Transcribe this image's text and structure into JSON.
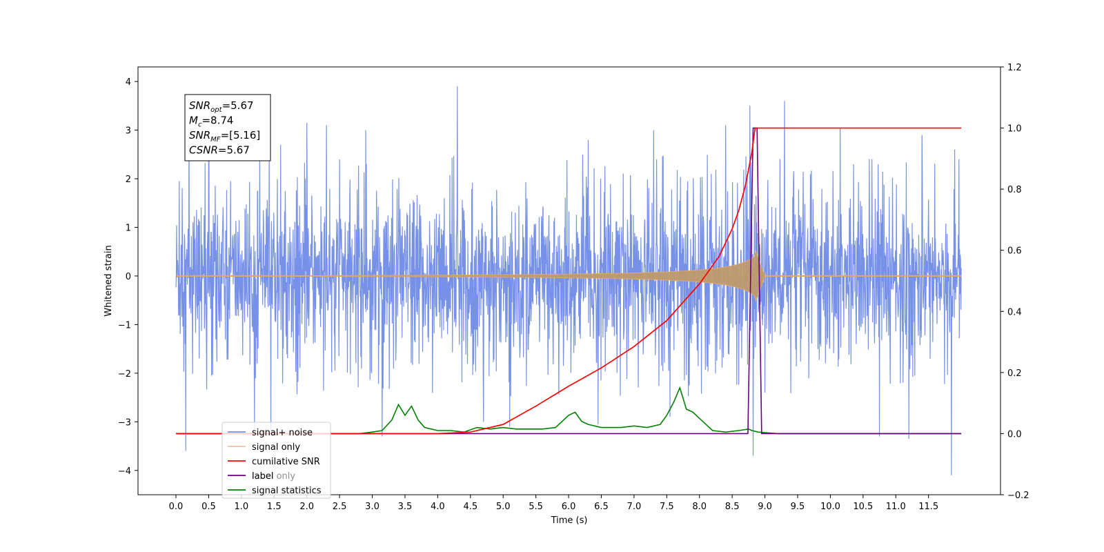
{
  "chart_data": {
    "type": "line",
    "xlabel": "Time (s)",
    "ylabel": "Whitened strain",
    "xlim": [
      -0.58,
      12.6
    ],
    "ylim": [
      -4.5,
      4.3
    ],
    "y2lim": [
      -0.2,
      1.2
    ],
    "x_ticks": [
      0.0,
      0.5,
      1.0,
      1.5,
      2.0,
      2.5,
      3.0,
      3.5,
      4.0,
      4.5,
      5.0,
      5.5,
      6.0,
      6.5,
      7.0,
      7.5,
      8.0,
      8.5,
      9.0,
      9.5,
      10.0,
      10.5,
      11.0,
      11.5
    ],
    "x_tick_labels": [
      "0.0",
      "0.5",
      "1.0",
      "1.5",
      "2.0",
      "2.5",
      "3.0",
      "3.5",
      "4.0",
      "4.5",
      "5.0",
      "5.5",
      "6.0",
      "6.5",
      "7.0",
      "7.5",
      "8.0",
      "8.5",
      "9.0",
      "9.5",
      "10.0",
      "10.5",
      "11.0",
      "11.5"
    ],
    "y_ticks": [
      -4,
      -3,
      -2,
      -1,
      0,
      1,
      2,
      3,
      4
    ],
    "y_tick_labels": [
      "−4",
      "−3",
      "−2",
      "−1",
      "0",
      "1",
      "2",
      "3",
      "4"
    ],
    "y2_ticks": [
      -0.2,
      0.0,
      0.2,
      0.4,
      0.6,
      0.8,
      1.0,
      1.2
    ],
    "y2_tick_labels": [
      "−0.2",
      "0.0",
      "0.2",
      "0.4",
      "0.6",
      "0.8",
      "1.0",
      "1.2"
    ],
    "grid": false,
    "legend_position": "lower-left",
    "annotation": {
      "lines": [
        {
          "main": "SNR",
          "sub": "opt",
          "rest": "=5.67"
        },
        {
          "main": "M",
          "sub": "c",
          "rest": "=8.74"
        },
        {
          "main": "SNR",
          "sub": "MF",
          "rest": "=[5.16]"
        },
        {
          "main": "CSNR",
          "sub": "",
          "rest": "=5.67"
        }
      ]
    },
    "series": [
      {
        "name": "signal+ noise",
        "axis": "left",
        "color": "#6f8be6",
        "duration": 12.0,
        "envelope": 1.7,
        "spikes": [
          [
            0.05,
            1.95
          ],
          [
            0.15,
            -3.6
          ],
          [
            0.2,
            3.4
          ],
          [
            0.5,
            3.0
          ],
          [
            1.2,
            -3.1
          ],
          [
            1.45,
            -3.2
          ],
          [
            1.6,
            2.7
          ],
          [
            2.0,
            3.15
          ],
          [
            2.3,
            3.1
          ],
          [
            2.9,
            3.0
          ],
          [
            3.15,
            -3.3
          ],
          [
            4.3,
            3.9
          ],
          [
            4.7,
            -3.0
          ],
          [
            5.1,
            -3.1
          ],
          [
            6.3,
            2.8
          ],
          [
            6.45,
            -3.05
          ],
          [
            7.3,
            3.0
          ],
          [
            7.55,
            -2.9
          ],
          [
            8.4,
            3.1
          ],
          [
            8.77,
            3.5
          ],
          [
            8.82,
            -3.7
          ],
          [
            9.3,
            3.6
          ],
          [
            10.15,
            3.05
          ],
          [
            10.75,
            -3.3
          ],
          [
            11.2,
            -3.35
          ],
          [
            11.4,
            2.9
          ],
          [
            11.85,
            -4.1
          ],
          [
            11.9,
            2.6
          ]
        ]
      },
      {
        "name": "signal only",
        "axis": "left",
        "color": "#e0a868",
        "fill_color": "#bf9a6c",
        "merger_time": 8.85,
        "peak_amplitude": 0.55,
        "chirp_start": 2.0
      },
      {
        "name": "cumilative SNR",
        "axis": "right",
        "color": "#ff0000",
        "x": [
          0.0,
          4.0,
          4.5,
          5.0,
          5.5,
          6.0,
          6.5,
          7.0,
          7.5,
          8.0,
          8.3,
          8.5,
          8.6,
          8.7,
          8.8,
          8.85,
          8.87,
          12.0
        ],
        "y": [
          0.0,
          0.0,
          0.005,
          0.03,
          0.09,
          0.155,
          0.215,
          0.285,
          0.37,
          0.49,
          0.58,
          0.67,
          0.73,
          0.81,
          0.92,
          1.0,
          1.0,
          1.0
        ]
      },
      {
        "name": "label only",
        "axis": "right",
        "color": "#7b1fa2",
        "hidden_in_plot": true
      },
      {
        "name": "label",
        "axis": "right",
        "color": "#6a0080",
        "x": [
          0.0,
          8.74,
          8.82,
          8.88,
          8.95,
          12.0
        ],
        "y": [
          0.0,
          0.0,
          1.0,
          1.0,
          0.0,
          0.0
        ]
      },
      {
        "name": "signal statistics",
        "axis": "right",
        "color": "#008000",
        "x": [
          0.0,
          2.8,
          3.0,
          3.15,
          3.3,
          3.4,
          3.5,
          3.6,
          3.7,
          3.8,
          3.9,
          4.0,
          4.2,
          4.4,
          4.6,
          4.8,
          5.0,
          5.2,
          5.4,
          5.6,
          5.8,
          6.0,
          6.1,
          6.2,
          6.3,
          6.5,
          6.8,
          7.0,
          7.2,
          7.4,
          7.5,
          7.6,
          7.7,
          7.8,
          7.9,
          8.0,
          8.2,
          8.4,
          8.6,
          8.75,
          8.8,
          8.9,
          9.0,
          9.2,
          12.0
        ],
        "y": [
          0.0,
          0.0,
          0.005,
          0.01,
          0.045,
          0.095,
          0.06,
          0.09,
          0.045,
          0.02,
          0.015,
          0.01,
          0.01,
          0.005,
          0.02,
          0.015,
          0.02,
          0.015,
          0.015,
          0.015,
          0.02,
          0.06,
          0.07,
          0.04,
          0.03,
          0.02,
          0.02,
          0.025,
          0.02,
          0.03,
          0.06,
          0.1,
          0.15,
          0.08,
          0.07,
          0.05,
          0.01,
          0.005,
          0.01,
          0.015,
          0.01,
          0.005,
          0.003,
          0.0,
          0.0
        ]
      }
    ],
    "legend_order": [
      "signal+ noise",
      "signal only",
      "cumilative SNR",
      "label",
      "signal statistics"
    ],
    "legend_overlay_text": "label only"
  }
}
